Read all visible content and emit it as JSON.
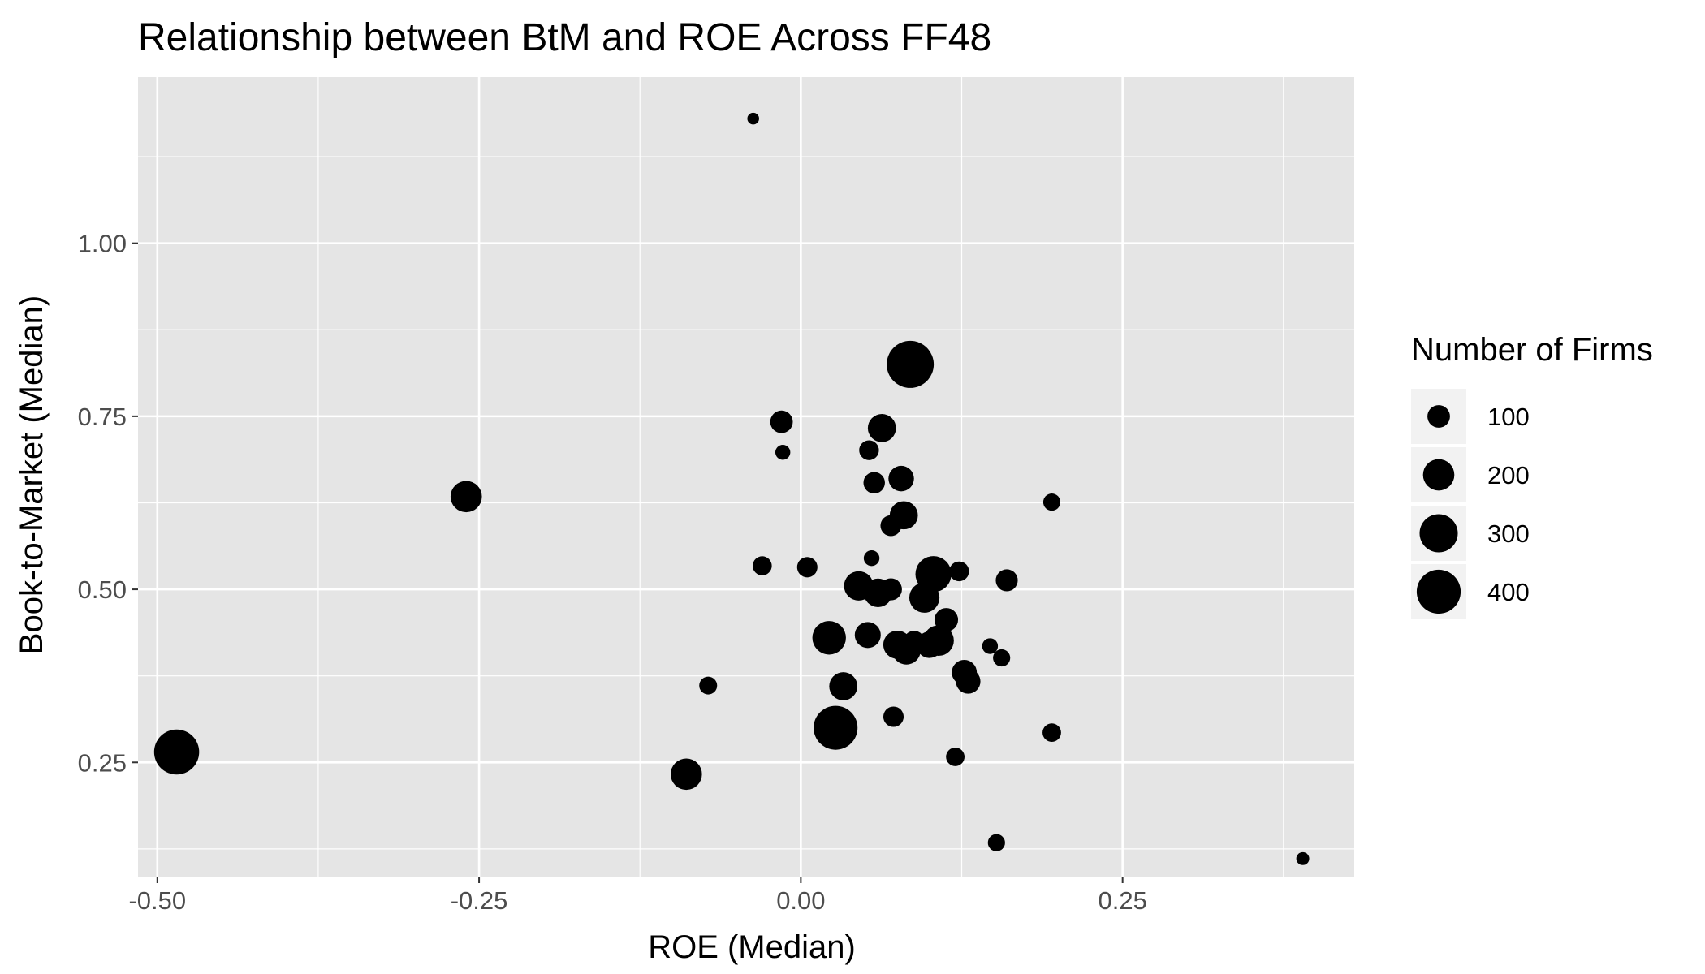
{
  "chart_data": {
    "type": "scatter",
    "title": "Relationship between BtM and ROE Across FF48",
    "xlabel": "ROE (Median)",
    "ylabel": "Book-to-Market (Median)",
    "xlim": [
      -0.515,
      0.43
    ],
    "ylim": [
      0.085,
      1.24
    ],
    "x_ticks": [
      {
        "value": -0.5,
        "label": "-0.50"
      },
      {
        "value": -0.25,
        "label": "-0.25"
      },
      {
        "value": 0.0,
        "label": "0.00"
      },
      {
        "value": 0.25,
        "label": "0.25"
      }
    ],
    "y_ticks": [
      {
        "value": 0.25,
        "label": "0.25"
      },
      {
        "value": 0.5,
        "label": "0.50"
      },
      {
        "value": 0.75,
        "label": "0.75"
      },
      {
        "value": 1.0,
        "label": "1.00"
      }
    ],
    "grid": true,
    "point_color": "#000000",
    "panel_color": "#e5e5e5",
    "grid_color": "#ffffff",
    "legend": {
      "title": "Number of Firms",
      "position": "right",
      "entries": [
        {
          "size": 100,
          "label": "100"
        },
        {
          "size": 200,
          "label": "200"
        },
        {
          "size": 300,
          "label": "300"
        },
        {
          "size": 400,
          "label": "400"
        }
      ]
    },
    "size_range": [
      20,
      460
    ],
    "points": [
      {
        "x": -0.037,
        "y": 1.18,
        "size": 22
      },
      {
        "x": 0.085,
        "y": 0.825,
        "size": 460
      },
      {
        "x": -0.015,
        "y": 0.742,
        "size": 100
      },
      {
        "x": -0.014,
        "y": 0.698,
        "size": 40
      },
      {
        "x": 0.063,
        "y": 0.733,
        "size": 160
      },
      {
        "x": 0.053,
        "y": 0.701,
        "size": 75
      },
      {
        "x": 0.078,
        "y": 0.66,
        "size": 130
      },
      {
        "x": 0.057,
        "y": 0.654,
        "size": 90
      },
      {
        "x": -0.26,
        "y": 0.634,
        "size": 200
      },
      {
        "x": 0.07,
        "y": 0.592,
        "size": 85
      },
      {
        "x": 0.08,
        "y": 0.607,
        "size": 160
      },
      {
        "x": 0.195,
        "y": 0.626,
        "size": 55
      },
      {
        "x": 0.055,
        "y": 0.545,
        "size": 45
      },
      {
        "x": -0.03,
        "y": 0.534,
        "size": 70
      },
      {
        "x": 0.005,
        "y": 0.532,
        "size": 80
      },
      {
        "x": 0.045,
        "y": 0.505,
        "size": 175
      },
      {
        "x": 0.06,
        "y": 0.495,
        "size": 165
      },
      {
        "x": 0.07,
        "y": 0.5,
        "size": 95
      },
      {
        "x": 0.103,
        "y": 0.522,
        "size": 265
      },
      {
        "x": 0.123,
        "y": 0.526,
        "size": 75
      },
      {
        "x": 0.16,
        "y": 0.513,
        "size": 95
      },
      {
        "x": 0.096,
        "y": 0.488,
        "size": 185
      },
      {
        "x": 0.113,
        "y": 0.456,
        "size": 110
      },
      {
        "x": 0.022,
        "y": 0.43,
        "size": 230
      },
      {
        "x": 0.052,
        "y": 0.434,
        "size": 135
      },
      {
        "x": 0.075,
        "y": 0.42,
        "size": 160
      },
      {
        "x": 0.088,
        "y": 0.425,
        "size": 85
      },
      {
        "x": 0.082,
        "y": 0.412,
        "size": 165
      },
      {
        "x": 0.1,
        "y": 0.42,
        "size": 140
      },
      {
        "x": 0.107,
        "y": 0.426,
        "size": 190
      },
      {
        "x": 0.147,
        "y": 0.418,
        "size": 45
      },
      {
        "x": 0.156,
        "y": 0.401,
        "size": 55
      },
      {
        "x": 0.127,
        "y": 0.38,
        "size": 125
      },
      {
        "x": 0.13,
        "y": 0.367,
        "size": 120
      },
      {
        "x": -0.072,
        "y": 0.361,
        "size": 60
      },
      {
        "x": 0.033,
        "y": 0.36,
        "size": 160
      },
      {
        "x": 0.027,
        "y": 0.3,
        "size": 400
      },
      {
        "x": 0.072,
        "y": 0.316,
        "size": 80
      },
      {
        "x": 0.195,
        "y": 0.293,
        "size": 65
      },
      {
        "x": -0.485,
        "y": 0.265,
        "size": 420
      },
      {
        "x": 0.12,
        "y": 0.258,
        "size": 65
      },
      {
        "x": -0.089,
        "y": 0.233,
        "size": 200
      },
      {
        "x": 0.152,
        "y": 0.134,
        "size": 55
      },
      {
        "x": 0.39,
        "y": 0.111,
        "size": 28
      }
    ]
  }
}
